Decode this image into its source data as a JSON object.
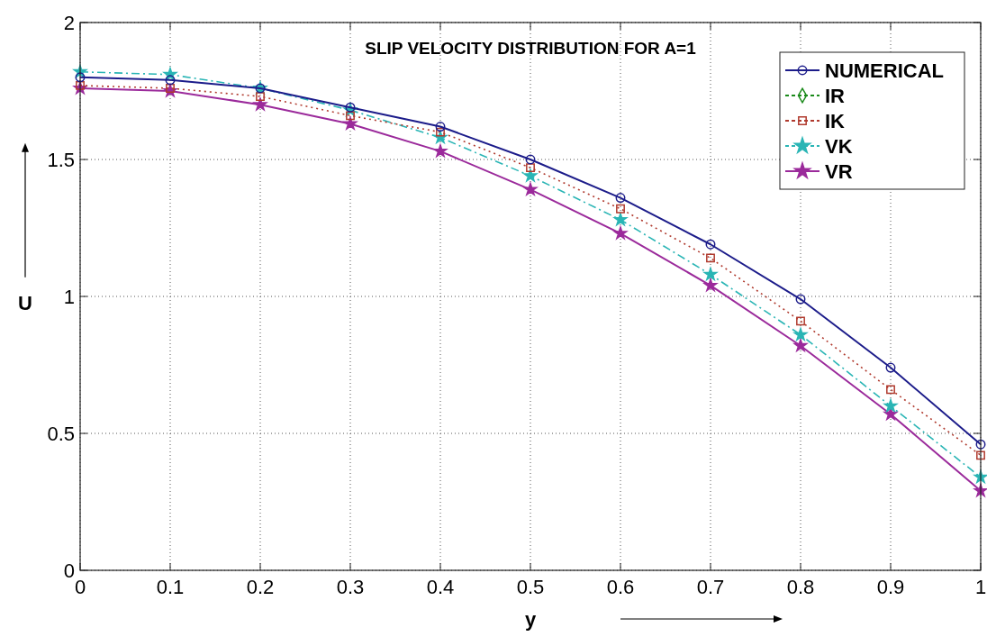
{
  "chart_data": {
    "type": "line",
    "title": "SLIP VELOCITY DISTRIBUTION FOR A=1",
    "xlabel": "y",
    "ylabel": "U",
    "x": [
      0,
      0.1,
      0.2,
      0.3,
      0.4,
      0.5,
      0.6,
      0.7,
      0.8,
      0.9,
      1
    ],
    "series": [
      {
        "name": "NUMERICAL",
        "color": "#1c1c8a",
        "marker": "circle",
        "line_style": "solid",
        "values": [
          1.8,
          1.79,
          1.76,
          1.69,
          1.62,
          1.5,
          1.36,
          1.19,
          0.99,
          0.74,
          0.46
        ]
      },
      {
        "name": "IR",
        "color": "#1a8a1a",
        "marker": "diamond",
        "line_style": "dashdot",
        "values": [
          null,
          null,
          null,
          null,
          null,
          null,
          null,
          null,
          null,
          null,
          null
        ]
      },
      {
        "name": "IK",
        "color": "#b03a2e",
        "marker": "square",
        "line_style": "dotted",
        "values": [
          1.77,
          1.76,
          1.73,
          1.66,
          1.6,
          1.47,
          1.32,
          1.14,
          0.91,
          0.66,
          0.42
        ]
      },
      {
        "name": "VK",
        "color": "#2ab5b5",
        "marker": "star",
        "line_style": "dashdot",
        "values": [
          1.82,
          1.81,
          1.76,
          1.68,
          1.58,
          1.44,
          1.28,
          1.08,
          0.86,
          0.6,
          0.34
        ]
      },
      {
        "name": "VR",
        "color": "#9b2a9b",
        "marker": "star",
        "line_style": "solid",
        "values": [
          1.76,
          1.75,
          1.7,
          1.63,
          1.53,
          1.39,
          1.23,
          1.04,
          0.82,
          0.57,
          0.29
        ]
      }
    ],
    "xlim": [
      0,
      1
    ],
    "xticks": [
      0,
      0.1,
      0.2,
      0.3,
      0.4,
      0.5,
      0.6,
      0.7,
      0.8,
      0.9,
      1
    ],
    "ylim": [
      0,
      2
    ],
    "yticks": [
      0,
      0.5,
      1,
      1.5,
      2
    ],
    "grid": true,
    "legend": "top right"
  }
}
